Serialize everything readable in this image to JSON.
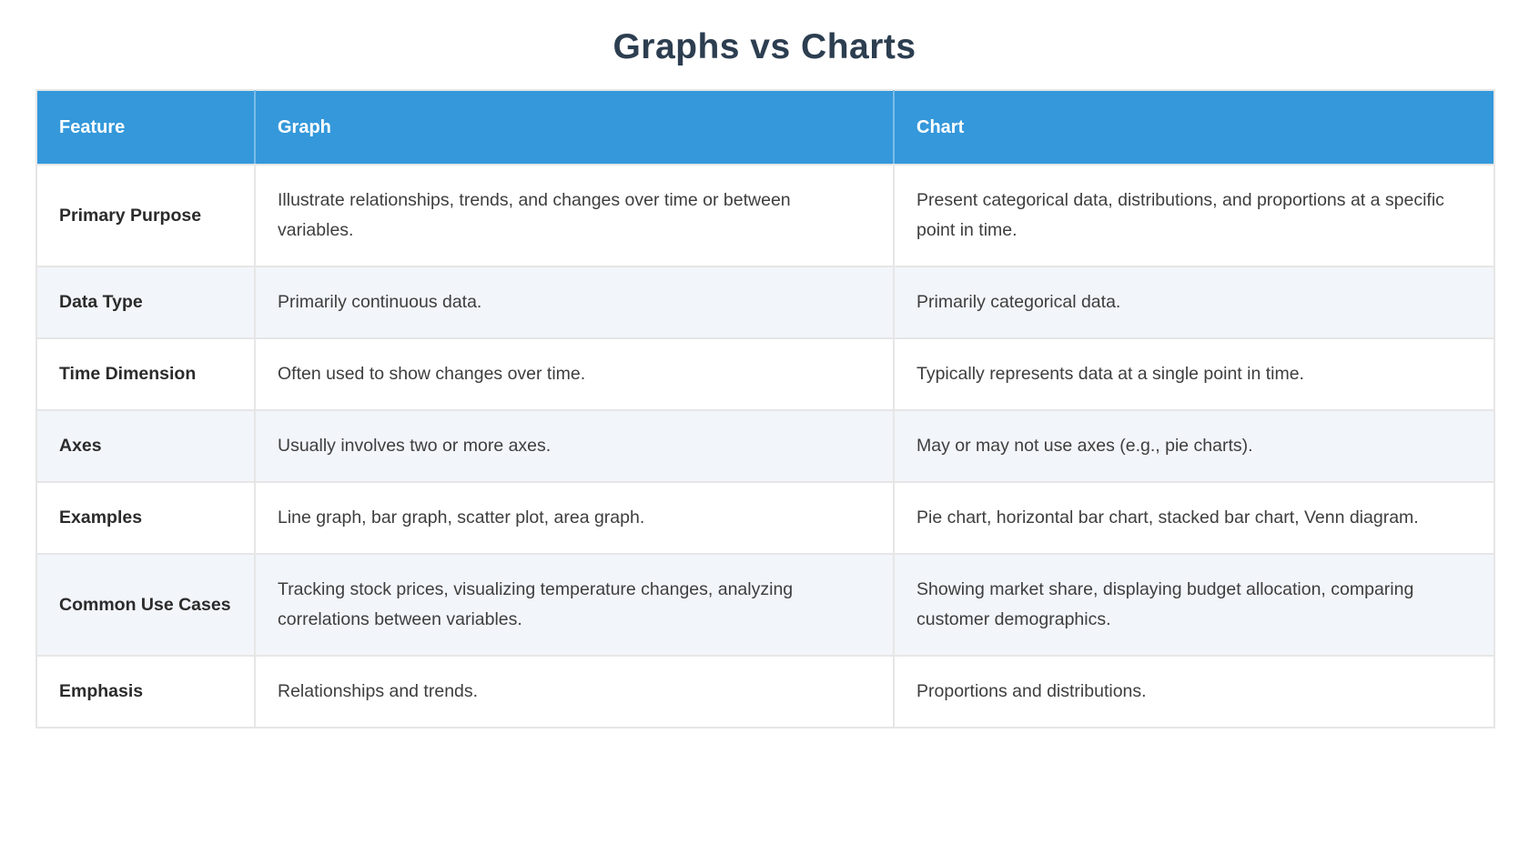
{
  "page": {
    "title": "Graphs vs Charts"
  },
  "table": {
    "columns": [
      {
        "label": "Feature"
      },
      {
        "label": "Graph"
      },
      {
        "label": "Chart"
      }
    ],
    "rows": [
      {
        "feature": "Primary Purpose",
        "graph": "Illustrate relationships, trends, and changes over time or between variables.",
        "chart": "Present categorical data, distributions, and proportions at a specific point in time."
      },
      {
        "feature": "Data Type",
        "graph": "Primarily continuous data.",
        "chart": "Primarily categorical data."
      },
      {
        "feature": "Time Dimension",
        "graph": "Often used to show changes over time.",
        "chart": "Typically represents data at a single point in time."
      },
      {
        "feature": "Axes",
        "graph": "Usually involves two or more axes.",
        "chart": "May or may not use axes (e.g., pie charts)."
      },
      {
        "feature": "Examples",
        "graph": "Line graph, bar graph, scatter plot, area graph.",
        "chart": "Pie chart, horizontal bar chart, stacked bar chart, Venn diagram."
      },
      {
        "feature": "Common Use Cases",
        "graph": "Tracking stock prices, visualizing temperature changes, analyzing correlations between variables.",
        "chart": "Showing market share, displaying budget allocation, comparing customer demographics."
      },
      {
        "feature": "Emphasis",
        "graph": "Relationships and trends.",
        "chart": "Proportions and distributions."
      }
    ],
    "colors": {
      "header_bg": "#3498db",
      "header_text": "#ffffff",
      "alt_row_bg": "#f2f5f9",
      "border": "#e6e6e6",
      "title_text": "#2c3e50",
      "body_text": "#3e3e3e"
    }
  }
}
